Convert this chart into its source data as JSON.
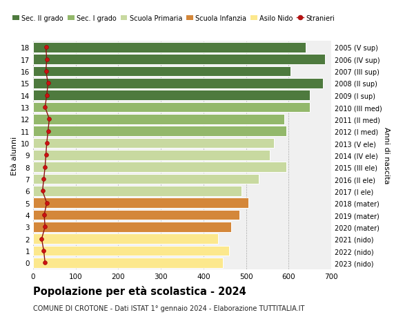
{
  "ages": [
    0,
    1,
    2,
    3,
    4,
    5,
    6,
    7,
    8,
    9,
    10,
    11,
    12,
    13,
    14,
    15,
    16,
    17,
    18
  ],
  "bar_values": [
    445,
    460,
    435,
    465,
    485,
    505,
    490,
    530,
    595,
    555,
    565,
    595,
    590,
    650,
    650,
    680,
    605,
    685,
    640
  ],
  "stranieri_values": [
    28,
    25,
    20,
    28,
    26,
    32,
    22,
    25,
    28,
    30,
    32,
    35,
    38,
    28,
    32,
    35,
    30,
    32,
    30
  ],
  "right_labels": [
    "2023 (nido)",
    "2022 (nido)",
    "2021 (nido)",
    "2020 (mater)",
    "2019 (mater)",
    "2018 (mater)",
    "2017 (I ele)",
    "2016 (II ele)",
    "2015 (III ele)",
    "2014 (IV ele)",
    "2013 (V ele)",
    "2012 (I med)",
    "2011 (II med)",
    "2010 (III med)",
    "2009 (I sup)",
    "2008 (II sup)",
    "2007 (III sup)",
    "2006 (IV sup)",
    "2005 (V sup)"
  ],
  "bar_colors": [
    "#fce88d",
    "#fce88d",
    "#fce88d",
    "#d4873a",
    "#d4873a",
    "#d4873a",
    "#c8d9a0",
    "#c8d9a0",
    "#c8d9a0",
    "#c8d9a0",
    "#c8d9a0",
    "#93b86b",
    "#93b86b",
    "#93b86b",
    "#4e7a3e",
    "#4e7a3e",
    "#4e7a3e",
    "#4e7a3e",
    "#4e7a3e"
  ],
  "legend_labels": [
    "Sec. II grado",
    "Sec. I grado",
    "Scuola Primaria",
    "Scuola Infanzia",
    "Asilo Nido",
    "Stranieri"
  ],
  "legend_colors": [
    "#4e7a3e",
    "#93b86b",
    "#c8d9a0",
    "#d4873a",
    "#fce88d",
    "#bb1111"
  ],
  "title": "Popolazione per età scolastica - 2024",
  "subtitle": "COMUNE DI CROTONE - Dati ISTAT 1° gennaio 2024 - Elaborazione TUTTITALIA.IT",
  "ylabel": "Età alunni",
  "right_ylabel": "Anni di nascita",
  "xlim": [
    0,
    700
  ],
  "xticks": [
    0,
    100,
    200,
    300,
    400,
    500,
    600,
    700
  ],
  "plot_bg_color": "#f0f0f0",
  "fig_bg_color": "#ffffff"
}
